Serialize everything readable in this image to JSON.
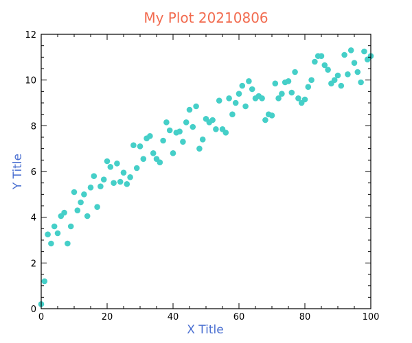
{
  "colors": {
    "title": "#f26b4f",
    "axis_title": "#4a6fd1",
    "points": "#45cfc8",
    "axis": "#000000"
  },
  "chart_data": {
    "type": "scatter",
    "title": "My Plot 20210806",
    "xlabel": "X Title",
    "ylabel": "Y Title",
    "xlim": [
      0,
      100
    ],
    "ylim": [
      0,
      12
    ],
    "grid": false,
    "legend": "none",
    "x_ticks": [
      "0",
      "20",
      "40",
      "60",
      "80",
      "100"
    ],
    "y_ticks": [
      "0",
      "2",
      "4",
      "6",
      "8",
      "10",
      "12"
    ],
    "series": [
      {
        "x": [
          0,
          1,
          2,
          3,
          4,
          5,
          6,
          7,
          8,
          9,
          10,
          11,
          12,
          13,
          14,
          15,
          16,
          17,
          18,
          19,
          20,
          21,
          22,
          23,
          24,
          25,
          26,
          27,
          28,
          29,
          30,
          31,
          32,
          33,
          34,
          35,
          36,
          37,
          38,
          39,
          40,
          41,
          42,
          43,
          44,
          45,
          46,
          47,
          48,
          49,
          50,
          51,
          52,
          53,
          54,
          55,
          56,
          57,
          58,
          59,
          60,
          61,
          62,
          63,
          64,
          65,
          66,
          67,
          68,
          69,
          70,
          71,
          72,
          73,
          74,
          75,
          76,
          77,
          78,
          79,
          80,
          81,
          82,
          83,
          84,
          85,
          86,
          87,
          88,
          89,
          90,
          91,
          92,
          93,
          94,
          95,
          96,
          97,
          98,
          99,
          100
        ],
        "y": [
          0.2,
          1.2,
          3.25,
          2.85,
          3.6,
          3.3,
          4.05,
          4.2,
          2.85,
          3.6,
          5.1,
          4.3,
          4.65,
          5.0,
          4.05,
          5.3,
          5.8,
          4.45,
          5.35,
          5.65,
          6.45,
          6.2,
          5.5,
          6.35,
          5.55,
          5.95,
          5.45,
          5.75,
          7.15,
          6.15,
          7.1,
          6.55,
          7.45,
          7.55,
          6.8,
          6.55,
          6.4,
          7.35,
          8.15,
          7.8,
          6.8,
          7.7,
          7.75,
          7.3,
          8.15,
          8.7,
          7.95,
          8.85,
          7.0,
          7.4,
          8.3,
          8.15,
          8.25,
          7.85,
          9.1,
          7.85,
          7.7,
          9.2,
          8.5,
          9.0,
          9.4,
          9.75,
          8.85,
          9.95,
          9.6,
          9.2,
          9.3,
          9.2,
          8.25,
          8.5,
          8.45,
          9.85,
          9.2,
          9.4,
          9.9,
          9.95,
          9.45,
          10.35,
          9.2,
          9.0,
          9.15,
          9.7,
          10.0,
          10.8,
          11.05,
          11.05,
          10.65,
          10.45,
          9.85,
          10.0,
          10.2,
          9.75,
          11.1,
          10.25,
          11.3,
          10.75,
          10.35,
          9.9,
          11.25,
          10.9,
          11.05
        ]
      }
    ]
  }
}
